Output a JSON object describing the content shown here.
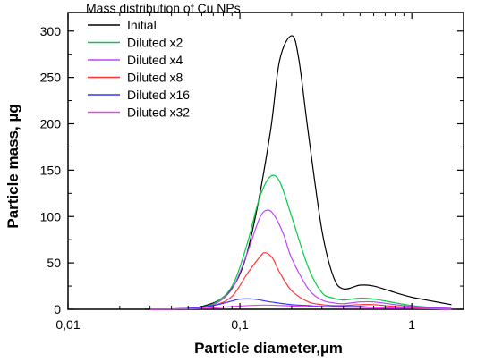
{
  "chart_data": {
    "type": "line",
    "title": "Mass distribution of Cu NPs",
    "xlabel": "Particle diameter,µm",
    "ylabel": "Particle mass, µg",
    "x_scale": "log",
    "xlim": [
      0.01,
      2.0
    ],
    "ylim": [
      0,
      320
    ],
    "x_ticks": [
      {
        "value": 0.01,
        "label": "0,01"
      },
      {
        "value": 0.1,
        "label": "0,1"
      },
      {
        "value": 1,
        "label": "1"
      }
    ],
    "y_ticks": [
      {
        "value": 0,
        "label": "0"
      },
      {
        "value": 50,
        "label": "50"
      },
      {
        "value": 100,
        "label": "100"
      },
      {
        "value": 150,
        "label": "150"
      },
      {
        "value": 200,
        "label": "200"
      },
      {
        "value": 250,
        "label": "250"
      },
      {
        "value": 300,
        "label": "300"
      }
    ],
    "grid": false,
    "legend_position": "top-left",
    "series": [
      {
        "name": "Initial",
        "color": "#000000",
        "x": [
          0.028,
          0.045,
          0.06,
          0.08,
          0.1,
          0.12,
          0.15,
          0.17,
          0.2,
          0.22,
          0.25,
          0.3,
          0.35,
          0.4,
          0.5,
          0.6,
          0.8,
          1.0,
          1.3,
          1.7
        ],
        "y": [
          0,
          0,
          3,
          13,
          38,
          90,
          190,
          268,
          295,
          270,
          190,
          85,
          35,
          22,
          26,
          25,
          18,
          13,
          9,
          5
        ]
      },
      {
        "name": "Diluted x2",
        "color": "#00cc44",
        "x": [
          0.03,
          0.05,
          0.07,
          0.09,
          0.11,
          0.13,
          0.15,
          0.17,
          0.2,
          0.25,
          0.3,
          0.35,
          0.4,
          0.5,
          0.6,
          0.8,
          1.0,
          1.3,
          1.7
        ],
        "y": [
          0,
          1,
          6,
          25,
          70,
          120,
          143,
          138,
          100,
          45,
          18,
          12,
          10,
          12,
          11,
          7,
          4,
          2,
          1
        ]
      },
      {
        "name": "Diluted x4",
        "color": "#bb44ff",
        "x": [
          0.03,
          0.05,
          0.07,
          0.09,
          0.11,
          0.13,
          0.145,
          0.16,
          0.18,
          0.2,
          0.25,
          0.3,
          0.35,
          0.4,
          0.5,
          0.6,
          0.8,
          1.0,
          1.3,
          1.7
        ],
        "y": [
          0,
          1,
          5,
          22,
          60,
          98,
          107,
          100,
          80,
          55,
          22,
          10,
          7,
          6,
          8,
          8,
          5,
          3,
          2,
          1
        ]
      },
      {
        "name": "Diluted x8",
        "color": "#ff3333",
        "x": [
          0.03,
          0.05,
          0.07,
          0.09,
          0.11,
          0.13,
          0.14,
          0.155,
          0.17,
          0.2,
          0.25,
          0.3,
          0.35,
          0.4,
          0.5,
          0.6,
          0.8,
          1.0,
          1.3,
          1.7
        ],
        "y": [
          0,
          1,
          4,
          14,
          38,
          56,
          61,
          55,
          40,
          20,
          8,
          5,
          4,
          4,
          5,
          5,
          3,
          2,
          1,
          0
        ]
      },
      {
        "name": "Diluted x16",
        "color": "#3333ff",
        "x": [
          0.03,
          0.05,
          0.07,
          0.09,
          0.1,
          0.12,
          0.15,
          0.2,
          0.25,
          0.3,
          0.4,
          0.5,
          0.6,
          0.8,
          1.0,
          1.3,
          1.7
        ],
        "y": [
          0,
          1,
          4,
          9,
          11,
          11,
          8,
          5,
          4,
          3,
          3,
          3,
          2,
          2,
          1,
          1,
          0
        ]
      },
      {
        "name": "Diluted x32",
        "color": "#ff33ff",
        "x": [
          0.03,
          0.05,
          0.07,
          0.1,
          0.14,
          0.2,
          0.3,
          0.5,
          0.7,
          1.0,
          1.4,
          1.7
        ],
        "y": [
          0,
          0.5,
          1.5,
          3.5,
          4.5,
          3.5,
          2.5,
          2,
          1.5,
          1,
          0.5,
          0
        ]
      }
    ]
  }
}
